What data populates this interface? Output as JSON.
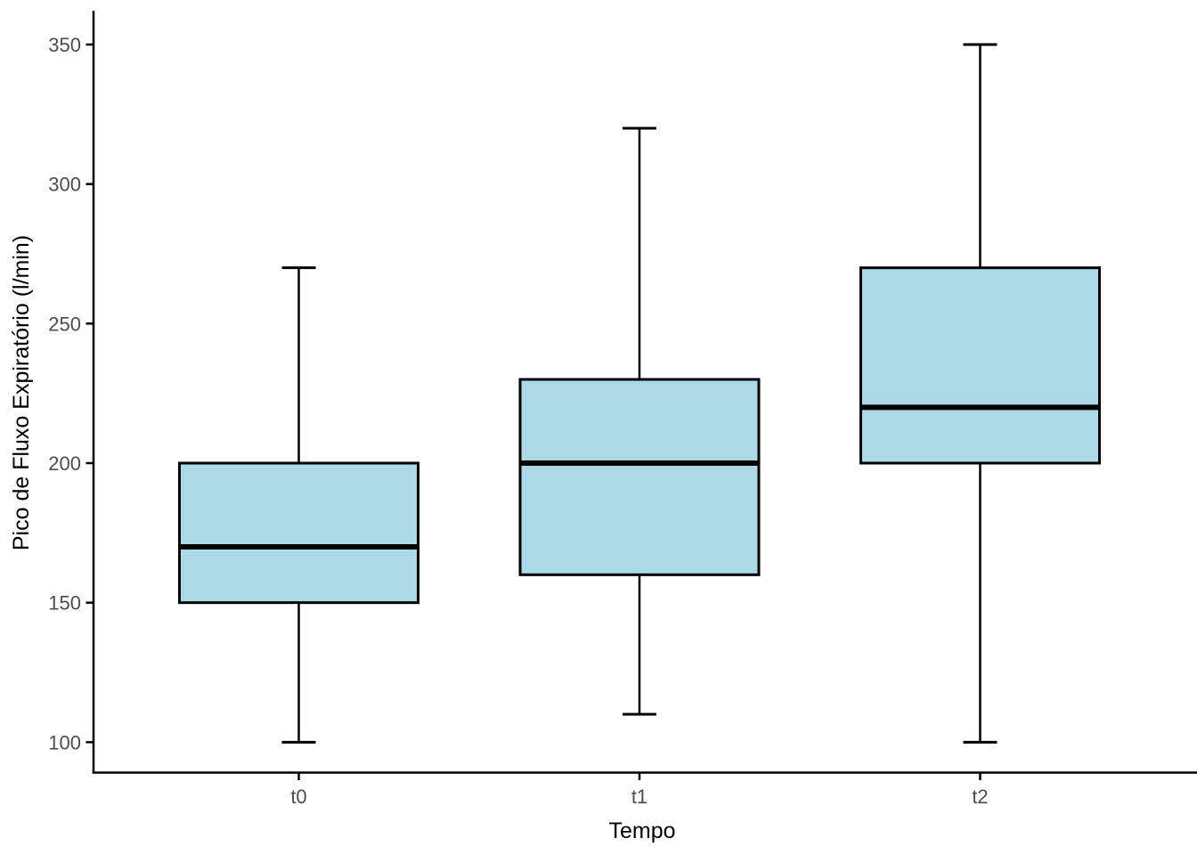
{
  "chart_data": {
    "type": "boxplot",
    "title": "",
    "xlabel": "Tempo",
    "ylabel": "Pico de Fluxo Expiratório (l/min)",
    "categories": [
      "t0",
      "t1",
      "t2"
    ],
    "y_ticks": [
      100,
      150,
      200,
      250,
      300,
      350
    ],
    "ylim": [
      89,
      362
    ],
    "grid": false,
    "legend": "none",
    "series": [
      {
        "category": "t0",
        "min": 100,
        "q1": 150,
        "median": 170,
        "q3": 200,
        "max": 270
      },
      {
        "category": "t1",
        "min": 110,
        "q1": 160,
        "median": 200,
        "q3": 230,
        "max": 320
      },
      {
        "category": "t2",
        "min": 100,
        "q1": 200,
        "median": 220,
        "q3": 270,
        "max": 350
      }
    ],
    "colors": {
      "box_fill": "#ADD8E6",
      "box_border": "#000000",
      "median_line": "#000000",
      "whisker": "#000000",
      "axis_line": "#000000",
      "tick_label": "#4D4D4D",
      "axis_title": "#000000",
      "background": "#FFFFFF"
    }
  }
}
